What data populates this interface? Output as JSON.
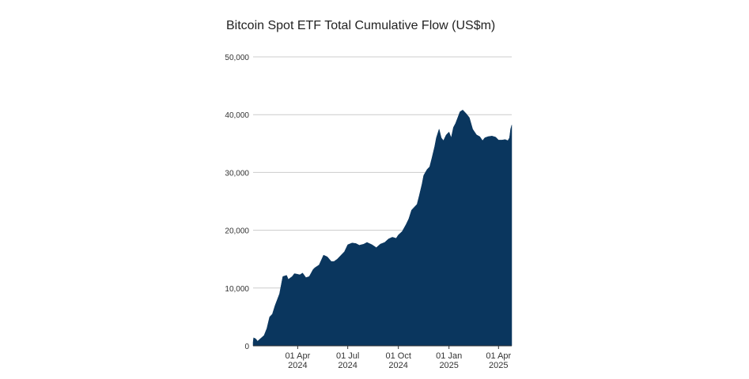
{
  "chart_data": {
    "type": "area",
    "title": "Bitcoin Spot ETF Total Cumulative Flow (US$m)",
    "xlabel": "",
    "ylabel": "",
    "ylim": [
      0,
      50000
    ],
    "grid": true,
    "legend": "none",
    "color": "#0a365e",
    "yticks": [
      "0",
      "10,000",
      "20,000",
      "30,000",
      "40,000",
      "50,000"
    ],
    "ytick_values": [
      0,
      10000,
      20000,
      30000,
      40000,
      50000
    ],
    "xticks": [
      {
        "date": "2024-04-01",
        "line1": "01 Apr",
        "line2": "2024"
      },
      {
        "date": "2024-07-01",
        "line1": "01 Jul",
        "line2": "2024"
      },
      {
        "date": "2024-10-01",
        "line1": "01 Oct",
        "line2": "2024"
      },
      {
        "date": "2025-01-01",
        "line1": "01 Jan",
        "line2": "2025"
      },
      {
        "date": "2025-04-01",
        "line1": "01 Apr",
        "line2": "2025"
      }
    ],
    "xlim": [
      "2024-01-11",
      "2025-04-25"
    ],
    "x": [
      "2024-01-11",
      "2024-01-12",
      "2024-01-16",
      "2024-01-19",
      "2024-01-25",
      "2024-01-31",
      "2024-02-05",
      "2024-02-10",
      "2024-02-15",
      "2024-02-20",
      "2024-02-28",
      "2024-03-05",
      "2024-03-12",
      "2024-03-15",
      "2024-03-22",
      "2024-03-26",
      "2024-03-31",
      "2024-04-05",
      "2024-04-10",
      "2024-04-16",
      "2024-04-22",
      "2024-04-29",
      "2024-05-02",
      "2024-05-10",
      "2024-05-18",
      "2024-05-25",
      "2024-06-01",
      "2024-06-06",
      "2024-06-12",
      "2024-06-18",
      "2024-06-25",
      "2024-07-01",
      "2024-07-09",
      "2024-07-16",
      "2024-07-22",
      "2024-07-30",
      "2024-08-05",
      "2024-08-14",
      "2024-08-22",
      "2024-08-29",
      "2024-09-06",
      "2024-09-13",
      "2024-09-20",
      "2024-09-27",
      "2024-10-01",
      "2024-10-08",
      "2024-10-15",
      "2024-10-20",
      "2024-10-25",
      "2024-10-30",
      "2024-11-04",
      "2024-11-08",
      "2024-11-13",
      "2024-11-16",
      "2024-11-22",
      "2024-11-27",
      "2024-12-01",
      "2024-12-06",
      "2024-12-09",
      "2024-12-14",
      "2024-12-18",
      "2024-12-22",
      "2024-12-27",
      "2025-01-01",
      "2025-01-05",
      "2025-01-09",
      "2025-01-13",
      "2025-01-17",
      "2025-01-21",
      "2025-01-26",
      "2025-02-01",
      "2025-02-07",
      "2025-02-13",
      "2025-02-20",
      "2025-02-26",
      "2025-03-03",
      "2025-03-07",
      "2025-03-13",
      "2025-03-20",
      "2025-03-27",
      "2025-04-01",
      "2025-04-07",
      "2025-04-13",
      "2025-04-18",
      "2025-04-21",
      "2025-04-23",
      "2025-04-25"
    ],
    "values": [
      600,
      1400,
      1200,
      800,
      1300,
      1800,
      3000,
      5000,
      5500,
      7000,
      9000,
      12000,
      12200,
      11500,
      12000,
      12500,
      12400,
      12300,
      12600,
      11800,
      12000,
      13200,
      13500,
      14000,
      15700,
      15400,
      14600,
      14600,
      15000,
      15600,
      16300,
      17500,
      17800,
      17700,
      17400,
      17600,
      17900,
      17500,
      17000,
      17600,
      17900,
      18500,
      18800,
      18600,
      19200,
      19800,
      21000,
      22000,
      23500,
      24000,
      24500,
      26000,
      28000,
      29500,
      30500,
      31000,
      32500,
      34500,
      36000,
      37500,
      36000,
      35500,
      36500,
      37000,
      36000,
      37800,
      38500,
      39500,
      40500,
      40800,
      40200,
      39500,
      37500,
      36500,
      36200,
      35500,
      36000,
      36200,
      36300,
      36100,
      35600,
      35600,
      35700,
      35500,
      36000,
      37500,
      38200
    ]
  }
}
